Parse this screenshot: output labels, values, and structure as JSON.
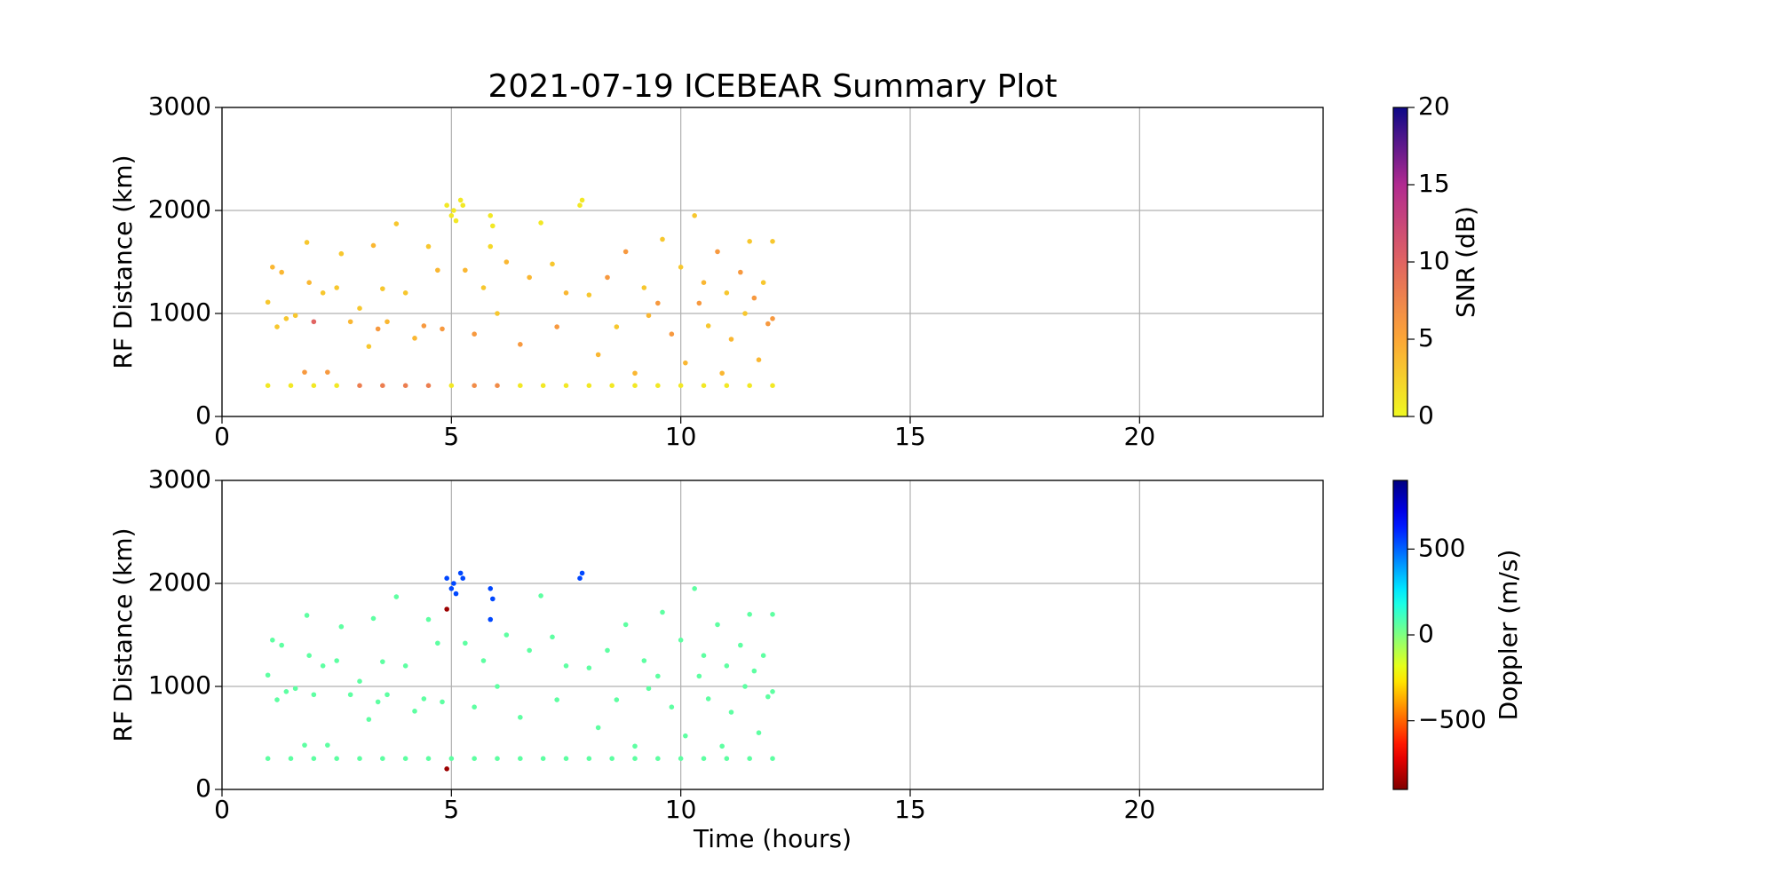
{
  "chart_data": [
    {
      "type": "scatter",
      "title": "2021-07-19 ICEBEAR Summary Plot",
      "ylabel": "RF Distance (km)",
      "xlim": [
        0,
        24
      ],
      "xticks": [
        0,
        5,
        10,
        15,
        20
      ],
      "ylim": [
        0,
        3000
      ],
      "yticks": [
        0,
        1000,
        2000,
        3000
      ],
      "grid": true,
      "colorbar": {
        "label": "SNR (dB)",
        "colormap": "plasma_r",
        "lim": [
          0,
          20
        ],
        "ticks": [
          0,
          5,
          10,
          15,
          20
        ]
      },
      "x": [
        1.0,
        1.1,
        1.2,
        1.3,
        1.4,
        1.6,
        1.8,
        1.85,
        1.9,
        2.0,
        2.2,
        2.3,
        2.5,
        2.6,
        2.8,
        3.0,
        3.2,
        3.3,
        3.4,
        3.5,
        3.6,
        3.8,
        4.0,
        4.2,
        4.4,
        4.5,
        4.7,
        4.8,
        4.9,
        5.0,
        5.05,
        5.1,
        5.2,
        5.25,
        5.3,
        5.5,
        5.7,
        5.85,
        5.85,
        5.9,
        6.0,
        6.2,
        6.5,
        6.7,
        6.95,
        7.2,
        7.3,
        7.5,
        7.8,
        7.85,
        8.0,
        8.2,
        8.4,
        8.6,
        8.8,
        9.0,
        9.2,
        9.3,
        9.5,
        9.6,
        9.8,
        10.0,
        10.1,
        10.3,
        10.4,
        10.5,
        10.6,
        10.8,
        10.9,
        11.0,
        11.1,
        11.3,
        11.4,
        11.5,
        11.6,
        11.7,
        11.8,
        11.9,
        12.0,
        12.0,
        1.0,
        1.5,
        2.0,
        2.5,
        3.0,
        3.5,
        4.0,
        4.5,
        5.0,
        5.5,
        6.0,
        6.5,
        7.0,
        7.5,
        8.0,
        8.5,
        9.0,
        9.5,
        10.0,
        10.5,
        11.0,
        11.5,
        12.0
      ],
      "y": [
        1110,
        1450,
        870,
        1400,
        950,
        980,
        430,
        1690,
        1300,
        920,
        1200,
        430,
        1250,
        1580,
        920,
        1050,
        680,
        1660,
        850,
        1240,
        920,
        1870,
        1200,
        760,
        880,
        1650,
        1420,
        850,
        2050,
        1950,
        2000,
        1900,
        2100,
        2050,
        1420,
        800,
        1250,
        1950,
        1650,
        1850,
        1000,
        1500,
        700,
        1350,
        1880,
        1480,
        870,
        1200,
        2050,
        2100,
        1180,
        600,
        1350,
        870,
        1600,
        420,
        1250,
        980,
        1100,
        1720,
        800,
        1450,
        520,
        1950,
        1100,
        1300,
        880,
        1600,
        420,
        1200,
        750,
        1400,
        1000,
        1700,
        1150,
        550,
        1300,
        900,
        1700,
        950,
        300,
        300,
        300,
        300,
        300,
        300,
        300,
        300,
        300,
        300,
        300,
        300,
        300,
        300,
        300,
        300,
        300,
        300,
        300,
        300,
        300,
        300,
        300
      ],
      "c": [
        3,
        4,
        3,
        4,
        3,
        3,
        6,
        3,
        4,
        10,
        3,
        6,
        3,
        3,
        4,
        3,
        3,
        4,
        6,
        3,
        4,
        3,
        3,
        4,
        6,
        3,
        4,
        6,
        1,
        1,
        1,
        1,
        1,
        1,
        4,
        6,
        3,
        1,
        2,
        1,
        3,
        4,
        6,
        4,
        1,
        3,
        6,
        4,
        1,
        1,
        3,
        4,
        6,
        3,
        6,
        4,
        3,
        4,
        6,
        3,
        6,
        3,
        4,
        3,
        6,
        4,
        3,
        6,
        4,
        3,
        4,
        6,
        3,
        3,
        6,
        4,
        3,
        6,
        3,
        6,
        1,
        1,
        1,
        1,
        8,
        8,
        8,
        8,
        1,
        7,
        7,
        1,
        1,
        1,
        1,
        1,
        1,
        1,
        1,
        1,
        1,
        1,
        1
      ]
    },
    {
      "type": "scatter",
      "ylabel": "RF Distance (km)",
      "xlabel": "Time (hours)",
      "xlim": [
        0,
        24
      ],
      "xticks": [
        0,
        5,
        10,
        15,
        20
      ],
      "ylim": [
        0,
        3000
      ],
      "yticks": [
        0,
        1000,
        2000,
        3000
      ],
      "grid": true,
      "colorbar": {
        "label": "Doppler (m/s)",
        "colormap": "jet_r",
        "lim": [
          -900,
          900
        ],
        "ticks": [
          {
            "value": -500,
            "label": "−500"
          },
          0,
          500
        ]
      },
      "x": [
        1.0,
        1.1,
        1.2,
        1.3,
        1.4,
        1.6,
        1.8,
        1.85,
        1.9,
        2.0,
        2.2,
        2.3,
        2.5,
        2.6,
        2.8,
        3.0,
        3.2,
        3.3,
        3.4,
        3.5,
        3.6,
        3.8,
        4.0,
        4.2,
        4.4,
        4.5,
        4.7,
        4.8,
        4.9,
        5.0,
        5.05,
        5.1,
        5.2,
        5.25,
        5.3,
        5.5,
        5.7,
        5.85,
        5.85,
        5.9,
        6.0,
        6.2,
        6.5,
        6.7,
        6.95,
        7.2,
        7.3,
        7.5,
        7.8,
        7.85,
        8.0,
        8.2,
        8.4,
        8.6,
        8.8,
        9.0,
        9.2,
        9.3,
        9.5,
        9.6,
        9.8,
        10.0,
        10.1,
        10.3,
        10.4,
        10.5,
        10.6,
        10.8,
        10.9,
        11.0,
        11.1,
        11.3,
        11.4,
        11.5,
        11.6,
        11.7,
        11.8,
        11.9,
        12.0,
        12.0,
        1.0,
        1.5,
        2.0,
        2.5,
        3.0,
        3.5,
        4.0,
        4.5,
        5.0,
        5.5,
        6.0,
        6.5,
        7.0,
        7.5,
        8.0,
        8.5,
        9.0,
        9.5,
        10.0,
        10.5,
        11.0,
        11.5,
        12.0,
        4.9,
        4.9
      ],
      "y": [
        1110,
        1450,
        870,
        1400,
        950,
        980,
        430,
        1690,
        1300,
        920,
        1200,
        430,
        1250,
        1580,
        920,
        1050,
        680,
        1660,
        850,
        1240,
        920,
        1870,
        1200,
        760,
        880,
        1650,
        1420,
        850,
        2050,
        1950,
        2000,
        1900,
        2100,
        2050,
        1420,
        800,
        1250,
        1950,
        1650,
        1850,
        1000,
        1500,
        700,
        1350,
        1880,
        1480,
        870,
        1200,
        2050,
        2100,
        1180,
        600,
        1350,
        870,
        1600,
        420,
        1250,
        980,
        1100,
        1720,
        800,
        1450,
        520,
        1950,
        1100,
        1300,
        880,
        1600,
        420,
        1200,
        750,
        1400,
        1000,
        1700,
        1150,
        550,
        1300,
        900,
        1700,
        950,
        300,
        300,
        300,
        300,
        300,
        300,
        300,
        300,
        300,
        300,
        300,
        300,
        300,
        300,
        300,
        300,
        300,
        300,
        300,
        300,
        300,
        300,
        300,
        1750,
        200
      ],
      "c": [
        60,
        60,
        60,
        60,
        60,
        60,
        60,
        60,
        60,
        60,
        60,
        60,
        60,
        60,
        60,
        60,
        60,
        60,
        60,
        60,
        60,
        60,
        60,
        60,
        60,
        60,
        60,
        60,
        550,
        550,
        550,
        550,
        550,
        550,
        60,
        60,
        60,
        550,
        550,
        550,
        60,
        60,
        60,
        60,
        60,
        60,
        60,
        60,
        550,
        550,
        60,
        60,
        60,
        60,
        60,
        60,
        60,
        60,
        60,
        60,
        60,
        60,
        60,
        60,
        60,
        60,
        60,
        60,
        60,
        60,
        60,
        60,
        60,
        60,
        60,
        60,
        60,
        60,
        60,
        60,
        60,
        60,
        60,
        60,
        60,
        60,
        60,
        60,
        60,
        60,
        60,
        60,
        60,
        60,
        60,
        60,
        60,
        60,
        60,
        60,
        60,
        60,
        60,
        -850,
        -850
      ]
    }
  ]
}
